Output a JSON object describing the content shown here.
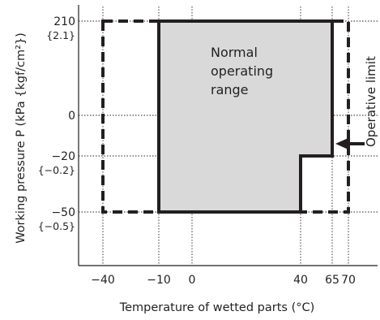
{
  "chart_data": {
    "type": "area",
    "title": "",
    "xlabel": "Temperature of wetted parts (°C)",
    "ylabel": "Working pressure P (kPa {kgf/cm²})",
    "x_ticks": [
      {
        "value": -40,
        "label": "−40"
      },
      {
        "value": -10,
        "label": "−10"
      },
      {
        "value": 0,
        "label": "0"
      },
      {
        "value": 40,
        "label": "40"
      },
      {
        "value": 65,
        "label": "65"
      },
      {
        "value": 70,
        "label": "70"
      }
    ],
    "y_ticks": [
      {
        "value": 210,
        "label": "210",
        "sublabel": "{2.1}"
      },
      {
        "value": 0,
        "label": "0",
        "sublabel": ""
      },
      {
        "value": -20,
        "label": "−20",
        "sublabel": "{−0.2}"
      },
      {
        "value": -50,
        "label": "−50",
        "sublabel": "{−0.5}"
      }
    ],
    "grid": true,
    "regions": [
      {
        "label": "Normal operating range",
        "label_lines": [
          "Normal",
          "operating",
          "range"
        ],
        "style": "filled-solid",
        "fill_color": "#d9d9da",
        "polygon": [
          [
            -10,
            210
          ],
          [
            65,
            210
          ],
          [
            65,
            -20
          ],
          [
            40,
            -20
          ],
          [
            40,
            -50
          ],
          [
            -10,
            -50
          ]
        ]
      },
      {
        "label": "Operative limit",
        "style": "dashed",
        "polygon": [
          [
            -40,
            210
          ],
          [
            70,
            210
          ],
          [
            70,
            -20
          ],
          [
            -40,
            -20
          ],
          [
            -40,
            -50
          ]
        ],
        "rect": {
          "x": [
            -40,
            70
          ],
          "y": [
            -50,
            210
          ]
        }
      }
    ],
    "annotation": {
      "text": "Operative limit",
      "points_to": [
        65,
        -5
      ]
    }
  }
}
